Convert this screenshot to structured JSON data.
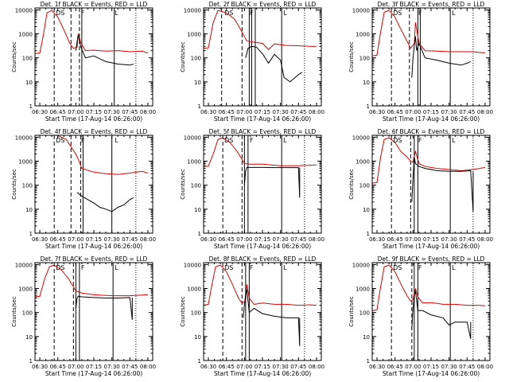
{
  "figure": {
    "colors": {
      "events": "#000000",
      "lld": "#e00000",
      "frame": "#000000"
    }
  },
  "chart_data": [
    {
      "type": "line",
      "title": "Det. 1f BLACK = Events, RED = LLD",
      "xlabel": "Start Time (17-Aug-14 06:26:00)",
      "ylabel": "Counts/sec",
      "x_ticks": [
        "06:30",
        "06:45",
        "07:00",
        "07:15",
        "07:30",
        "07:45",
        "08:00"
      ],
      "y_ticks": [
        "1",
        "10",
        "100",
        "1000",
        "10000"
      ],
      "y_scale": "log",
      "ylim": [
        1,
        12000
      ],
      "grid": false,
      "markers": [
        "D",
        "S",
        "F",
        "L"
      ],
      "series": [
        {
          "name": "LLD",
          "color": "#e00000",
          "x": [
            "06:26",
            "06:30",
            "06:33",
            "06:36",
            "06:40",
            "06:45",
            "06:50",
            "06:55",
            "06:58",
            "07:01",
            "07:02",
            "07:04",
            "07:08",
            "07:15",
            "07:25",
            "07:35",
            "07:45",
            "07:55",
            "08:00"
          ],
          "y": [
            150,
            160,
            900,
            7500,
            9500,
            5000,
            1500,
            400,
            250,
            280,
            1000,
            450,
            200,
            210,
            190,
            200,
            180,
            190,
            160
          ]
        },
        {
          "name": "Events",
          "color": "#000000",
          "x": [
            "07:00",
            "07:01",
            "07:02",
            "07:04",
            "07:08",
            "07:15",
            "07:25",
            "07:35",
            "07:45",
            "07:48"
          ],
          "y": [
            200,
            450,
            900,
            300,
            100,
            120,
            70,
            55,
            50,
            55
          ]
        }
      ]
    },
    {
      "type": "line",
      "title": "Det. 2f BLACK = Events, RED = LLD",
      "xlabel": "Start Time (17-Aug-14 06:26:00)",
      "ylabel": "Counts/sec",
      "x_ticks": [
        "06:30",
        "06:45",
        "07:00",
        "07:15",
        "07:30",
        "07:45",
        "08:00"
      ],
      "y_ticks": [
        "1",
        "10",
        "100",
        "1000",
        "10000"
      ],
      "y_scale": "log",
      "ylim": [
        1,
        12000
      ],
      "grid": false,
      "markers": [
        "D",
        "S",
        "F",
        "L"
      ],
      "series": [
        {
          "name": "LLD",
          "color": "#e00000",
          "x": [
            "06:26",
            "06:30",
            "06:34",
            "06:38",
            "06:45",
            "06:52",
            "06:58",
            "07:02",
            "07:08",
            "07:15",
            "07:20",
            "07:25",
            "07:35",
            "07:45",
            "07:55",
            "08:00"
          ],
          "y": [
            250,
            260,
            3000,
            9500,
            7500,
            4000,
            1200,
            500,
            450,
            400,
            220,
            380,
            330,
            320,
            300,
            300
          ]
        },
        {
          "name": "Events",
          "color": "#000000",
          "x": [
            "07:01",
            "07:03",
            "07:06",
            "07:10",
            "07:15",
            "07:20",
            "07:25",
            "07:30",
            "07:33",
            "07:38",
            "07:45",
            "07:48"
          ],
          "y": [
            100,
            250,
            300,
            280,
            150,
            60,
            140,
            80,
            15,
            10,
            20,
            25
          ]
        }
      ]
    },
    {
      "type": "line",
      "title": "Det. 3f BLACK = Events, RED = LLD",
      "xlabel": "Start Time (17-Aug-14 06:26:00)",
      "ylabel": "Counts/sec",
      "x_ticks": [
        "06:30",
        "06:45",
        "07:00",
        "07:15",
        "07:30",
        "07:45",
        "08:00"
      ],
      "y_ticks": [
        "1",
        "10",
        "100",
        "1000",
        "10000"
      ],
      "y_scale": "log",
      "ylim": [
        1,
        12000
      ],
      "grid": false,
      "markers": [
        "D",
        "S",
        "F",
        "L"
      ],
      "series": [
        {
          "name": "LLD",
          "color": "#e00000",
          "x": [
            "06:26",
            "06:30",
            "06:33",
            "06:36",
            "06:40",
            "06:45",
            "06:50",
            "06:55",
            "06:58",
            "07:01",
            "07:02",
            "07:05",
            "07:10",
            "07:20",
            "07:30",
            "07:40",
            "07:50",
            "08:00"
          ],
          "y": [
            120,
            130,
            1200,
            8000,
            9500,
            5000,
            1500,
            500,
            250,
            400,
            3000,
            400,
            200,
            190,
            180,
            180,
            180,
            160
          ]
        },
        {
          "name": "Events",
          "color": "#000000",
          "x": [
            "06:59",
            "07:00",
            "07:01",
            "07:02",
            "07:03",
            "07:05",
            "07:10",
            "07:20",
            "07:30",
            "07:40",
            "07:45",
            "07:48"
          ],
          "y": [
            15,
            100,
            300,
            800,
            200,
            400,
            100,
            80,
            60,
            50,
            60,
            70
          ]
        }
      ]
    },
    {
      "type": "line",
      "title": "Det. 4f BLACK = Events, RED = LLD",
      "xlabel": "Start Time (17-Aug-14 06:26:00)",
      "ylabel": "Counts/sec",
      "x_ticks": [
        "06:30",
        "06:45",
        "07:00",
        "07:15",
        "07:30",
        "07:45",
        "08:00"
      ],
      "y_ticks": [
        "1",
        "10",
        "100",
        "1000",
        "10000"
      ],
      "y_scale": "log",
      "ylim": [
        1,
        12000
      ],
      "grid": false,
      "markers": [
        "D",
        "S",
        "F",
        "L"
      ],
      "series": [
        {
          "name": "LLD",
          "color": "#e00000",
          "x": [
            "06:44",
            "06:48",
            "06:52",
            "06:56",
            "07:00",
            "07:02",
            "07:05",
            "07:15",
            "07:25",
            "07:35",
            "07:45",
            "07:55",
            "08:00"
          ],
          "y": [
            12000,
            10000,
            8000,
            4000,
            2000,
            1200,
            500,
            350,
            300,
            280,
            320,
            380,
            320
          ]
        },
        {
          "name": "Events",
          "color": "#000000",
          "x": [
            "07:01",
            "07:05",
            "07:10",
            "07:15",
            "07:20",
            "07:25",
            "07:30",
            "07:35",
            "07:40",
            "07:45",
            "07:48"
          ],
          "y": [
            50,
            35,
            25,
            18,
            12,
            10,
            8,
            12,
            15,
            25,
            30
          ]
        }
      ]
    },
    {
      "type": "line",
      "title": "Det. 5f BLACK = Events, RED = LLD",
      "xlabel": "Start Time (17-Aug-14 06:26:00)",
      "ylabel": "Counts/sec",
      "x_ticks": [
        "06:30",
        "06:45",
        "07:00",
        "07:15",
        "07:30",
        "07:45",
        "08:00"
      ],
      "y_ticks": [
        "1",
        "10",
        "100",
        "1000",
        "10000"
      ],
      "y_scale": "log",
      "ylim": [
        1,
        12000
      ],
      "grid": false,
      "markers": [
        "D",
        "S",
        "F",
        "L"
      ],
      "series": [
        {
          "name": "LLD",
          "color": "#e00000",
          "x": [
            "06:26",
            "06:30",
            "06:34",
            "06:38",
            "06:42",
            "06:48",
            "06:54",
            "06:58",
            "07:00",
            "07:05",
            "07:15",
            "07:30",
            "07:45",
            "08:00"
          ],
          "y": [
            600,
            620,
            2000,
            8000,
            9500,
            6000,
            2500,
            1200,
            800,
            750,
            750,
            650,
            650,
            700
          ]
        },
        {
          "name": "Events",
          "color": "#000000",
          "x": [
            "07:00",
            "07:01",
            "07:02",
            "07:05",
            "07:15",
            "07:25",
            "07:35",
            "07:45",
            "07:46",
            "07:46"
          ],
          "y": [
            100,
            400,
            550,
            550,
            550,
            540,
            540,
            540,
            30,
            540
          ]
        }
      ]
    },
    {
      "type": "line",
      "title": "Det. 6f BLACK = Events, RED = LLD",
      "xlabel": "Start Time (17-Aug-14 06:26:00)",
      "ylabel": "Counts/sec",
      "x_ticks": [
        "06:30",
        "06:45",
        "07:00",
        "07:15",
        "07:30",
        "07:45",
        "08:00"
      ],
      "y_ticks": [
        "1",
        "10",
        "100",
        "1000",
        "10000"
      ],
      "y_scale": "log",
      "ylim": [
        1,
        12000
      ],
      "grid": false,
      "markers": [
        "D",
        "S",
        "F",
        "L"
      ],
      "series": [
        {
          "name": "LLD",
          "color": "#e00000",
          "x": [
            "06:26",
            "06:30",
            "06:33",
            "06:36",
            "06:40",
            "06:45",
            "06:50",
            "06:55",
            "06:58",
            "07:00",
            "07:02",
            "07:05",
            "07:10",
            "07:20",
            "07:30",
            "07:40",
            "07:50",
            "08:00"
          ],
          "y": [
            120,
            130,
            1500,
            8000,
            9500,
            6000,
            2500,
            1500,
            1000,
            900,
            2500,
            800,
            600,
            500,
            450,
            400,
            450,
            550
          ]
        },
        {
          "name": "Events",
          "color": "#000000",
          "x": [
            "06:59",
            "07:00",
            "07:01",
            "07:02",
            "07:05",
            "07:10",
            "07:20",
            "07:30",
            "07:40",
            "07:48",
            "07:50",
            "07:50"
          ],
          "y": [
            20,
            200,
            1500,
            800,
            600,
            500,
            400,
            380,
            380,
            400,
            8,
            350
          ]
        }
      ]
    },
    {
      "type": "line",
      "title": "Det. 7f BLACK = Events, RED = LLD",
      "xlabel": "Start Time (17-Aug-14 06:26:00)",
      "ylabel": "Counts/sec",
      "x_ticks": [
        "06:30",
        "06:45",
        "07:00",
        "07:15",
        "07:30",
        "07:45",
        "08:00"
      ],
      "y_ticks": [
        "1",
        "10",
        "100",
        "1000",
        "10000"
      ],
      "y_scale": "log",
      "ylim": [
        1,
        12000
      ],
      "grid": false,
      "markers": [
        "D",
        "S",
        "F",
        "L"
      ],
      "series": [
        {
          "name": "LLD",
          "color": "#e00000",
          "x": [
            "06:26",
            "06:30",
            "06:34",
            "06:38",
            "06:42",
            "06:48",
            "06:54",
            "06:58",
            "07:00",
            "07:05",
            "07:15",
            "07:30",
            "07:45",
            "08:00"
          ],
          "y": [
            450,
            470,
            2500,
            8000,
            9500,
            6000,
            2500,
            1200,
            800,
            650,
            550,
            500,
            500,
            550
          ]
        },
        {
          "name": "Events",
          "color": "#000000",
          "x": [
            "07:00",
            "07:01",
            "07:02",
            "07:05",
            "07:15",
            "07:25",
            "07:35",
            "07:45",
            "07:47",
            "07:47"
          ],
          "y": [
            150,
            400,
            480,
            450,
            420,
            400,
            400,
            420,
            50,
            420
          ]
        }
      ]
    },
    {
      "type": "line",
      "title": "Det. 8f BLACK = Events, RED = LLD",
      "xlabel": "Start Time (17-Aug-14 06:26:00)",
      "ylabel": "Counts/sec",
      "x_ticks": [
        "06:30",
        "06:45",
        "07:00",
        "07:15",
        "07:30",
        "07:45",
        "08:00"
      ],
      "y_ticks": [
        "1",
        "10",
        "100",
        "1000",
        "10000"
      ],
      "y_scale": "log",
      "ylim": [
        1,
        12000
      ],
      "grid": false,
      "markers": [
        "D",
        "S",
        "F",
        "L"
      ],
      "series": [
        {
          "name": "LLD",
          "color": "#e00000",
          "x": [
            "06:26",
            "06:30",
            "06:33",
            "06:36",
            "06:40",
            "06:45",
            "06:50",
            "06:55",
            "06:58",
            "07:01",
            "07:02",
            "07:04",
            "07:08",
            "07:15",
            "07:25",
            "07:35",
            "07:45",
            "07:55",
            "08:00"
          ],
          "y": [
            200,
            220,
            1500,
            8000,
            9500,
            5000,
            1500,
            400,
            250,
            300,
            1500,
            400,
            220,
            250,
            220,
            220,
            200,
            210,
            200
          ]
        },
        {
          "name": "Events",
          "color": "#000000",
          "x": [
            "06:59",
            "07:00",
            "07:01",
            "07:02",
            "07:04",
            "07:08",
            "07:15",
            "07:25",
            "07:35",
            "07:45",
            "07:46",
            "07:46"
          ],
          "y": [
            60,
            200,
            600,
            900,
            100,
            150,
            90,
            70,
            60,
            60,
            4,
            60
          ]
        }
      ]
    },
    {
      "type": "line",
      "title": "Det. 9f BLACK = Events, RED = LLD",
      "xlabel": "Start Time (17-Aug-14 06:26:00)",
      "ylabel": "Counts/sec",
      "x_ticks": [
        "06:30",
        "06:45",
        "07:00",
        "07:15",
        "07:30",
        "07:45",
        "08:00"
      ],
      "y_ticks": [
        "1",
        "10",
        "100",
        "1000",
        "10000"
      ],
      "y_scale": "log",
      "ylim": [
        1,
        12000
      ],
      "grid": false,
      "markers": [
        "D",
        "S",
        "F",
        "L"
      ],
      "series": [
        {
          "name": "LLD",
          "color": "#e00000",
          "x": [
            "06:26",
            "06:30",
            "06:33",
            "06:36",
            "06:40",
            "06:45",
            "06:50",
            "06:55",
            "06:58",
            "07:00",
            "07:02",
            "07:04",
            "07:08",
            "07:15",
            "07:25",
            "07:35",
            "07:45",
            "07:55",
            "08:00"
          ],
          "y": [
            120,
            130,
            1200,
            8000,
            9500,
            5000,
            1500,
            500,
            300,
            350,
            1000,
            450,
            250,
            260,
            220,
            220,
            200,
            200,
            190
          ]
        },
        {
          "name": "Events",
          "color": "#000000",
          "x": [
            "06:59",
            "07:00",
            "07:01",
            "07:02",
            "07:04",
            "07:08",
            "07:15",
            "07:25",
            "07:30",
            "07:35",
            "07:45",
            "07:48",
            "07:48"
          ],
          "y": [
            20,
            150,
            500,
            800,
            120,
            120,
            80,
            60,
            30,
            40,
            40,
            8,
            40
          ]
        }
      ]
    }
  ]
}
